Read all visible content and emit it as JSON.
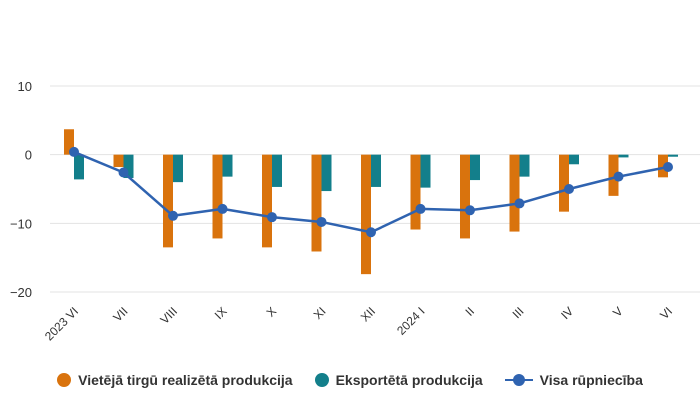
{
  "chart_data": {
    "type": "bar",
    "categories": [
      "2023 VI",
      "VII",
      "VIII",
      "IX",
      "X",
      "XI",
      "XII",
      "2024 I",
      "II",
      "III",
      "IV",
      "V",
      "VI"
    ],
    "ylim": [
      -20,
      10
    ],
    "yticks": [
      -20,
      -10,
      0,
      10
    ],
    "ytick_labels": [
      "−20",
      "−10",
      "0",
      "10"
    ],
    "title": "",
    "xlabel": "",
    "ylabel": "",
    "series": [
      {
        "name": "Vietējā tirgū realizētā produkcija",
        "kind": "bar",
        "color": "#d9730d",
        "values": [
          3.7,
          -1.8,
          -13.5,
          -12.2,
          -13.5,
          -14.1,
          -17.4,
          -10.9,
          -12.2,
          -11.2,
          -8.3,
          -6.0,
          -3.3
        ]
      },
      {
        "name": "Eksportētā produkcija",
        "kind": "bar",
        "color": "#137f8b",
        "values": [
          -3.6,
          -3.4,
          -4.0,
          -3.2,
          -4.7,
          -5.3,
          -4.7,
          -4.8,
          -3.7,
          -3.2,
          -1.4,
          -0.4,
          -0.3
        ]
      },
      {
        "name": "Visa rūpniecība",
        "kind": "line",
        "color": "#2f63b0",
        "values": [
          0.4,
          -2.6,
          -8.9,
          -7.9,
          -9.1,
          -9.8,
          -11.3,
          -7.9,
          -8.1,
          -7.1,
          -5.0,
          -3.2,
          -1.8
        ]
      }
    ]
  }
}
